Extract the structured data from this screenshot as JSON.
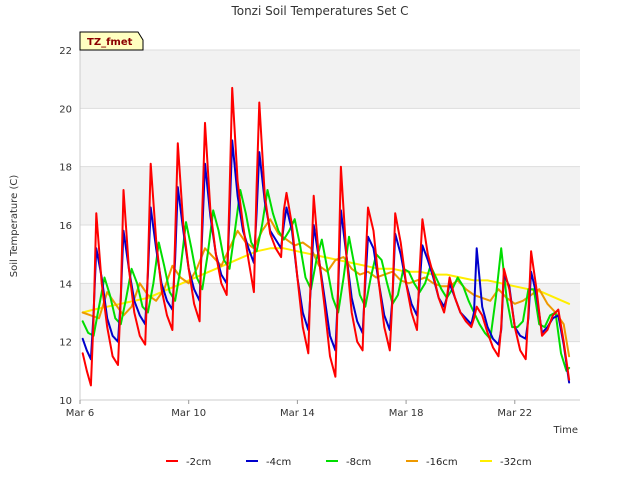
{
  "chart_data": {
    "type": "line",
    "title": "Tonzi Soil Temperatures Set C",
    "xlabel": "Time",
    "ylabel": "Soil Temperature (C)",
    "badge": "TZ_fmet",
    "ylim": [
      10,
      22
    ],
    "xlim": [
      6.0,
      24.4
    ],
    "yticks": [
      10,
      12,
      14,
      16,
      18,
      20,
      22
    ],
    "xticks": [
      {
        "day": 6,
        "label": "Mar 6"
      },
      {
        "day": 10,
        "label": "Mar 10"
      },
      {
        "day": 14,
        "label": "Mar 14"
      },
      {
        "day": 18,
        "label": "Mar 18"
      },
      {
        "day": 22,
        "label": "Mar 22"
      }
    ],
    "grid": true,
    "legend_position": "bottom",
    "x_unit": "day of March",
    "series": [
      {
        "name": "-2cm",
        "color": "#ff0000",
        "x": [
          6.1,
          6.25,
          6.4,
          6.5,
          6.6,
          6.8,
          7.0,
          7.2,
          7.4,
          7.5,
          7.6,
          7.8,
          8.0,
          8.2,
          8.4,
          8.5,
          8.6,
          8.8,
          9.0,
          9.2,
          9.4,
          9.5,
          9.6,
          9.8,
          10.0,
          10.2,
          10.4,
          10.5,
          10.6,
          10.8,
          11.0,
          11.2,
          11.4,
          11.5,
          11.6,
          11.8,
          12.0,
          12.2,
          12.4,
          12.5,
          12.6,
          12.8,
          13.0,
          13.2,
          13.4,
          13.5,
          13.6,
          13.8,
          14.0,
          14.2,
          14.4,
          14.5,
          14.6,
          14.8,
          15.0,
          15.2,
          15.4,
          15.5,
          15.6,
          15.8,
          16.0,
          16.2,
          16.4,
          16.5,
          16.6,
          16.8,
          17.0,
          17.2,
          17.4,
          17.5,
          17.6,
          17.8,
          18.0,
          18.2,
          18.4,
          18.5,
          18.6,
          18.8,
          19.0,
          19.2,
          19.4,
          19.5,
          19.6,
          19.8,
          20.0,
          20.2,
          20.4,
          20.5,
          20.6,
          20.8,
          21.0,
          21.2,
          21.4,
          21.5,
          21.6,
          21.8,
          22.0,
          22.2,
          22.4,
          22.5,
          22.6,
          22.8,
          23.0,
          23.2,
          23.4,
          23.6,
          23.8,
          24.0
        ],
        "y": [
          11.6,
          11.0,
          10.5,
          12.8,
          16.4,
          14.0,
          12.5,
          11.5,
          11.2,
          13.5,
          17.2,
          14.5,
          13.0,
          12.2,
          11.9,
          14.5,
          18.1,
          15.5,
          13.8,
          12.9,
          12.4,
          15.5,
          18.8,
          16.0,
          14.5,
          13.3,
          12.7,
          16.5,
          19.5,
          16.5,
          15.0,
          14.0,
          13.6,
          17.0,
          20.7,
          17.5,
          16.0,
          14.8,
          13.7,
          17.3,
          20.2,
          17.0,
          15.7,
          15.2,
          14.9,
          16.5,
          17.1,
          16.0,
          14.2,
          12.5,
          11.6,
          14.5,
          17.0,
          14.8,
          13.2,
          11.5,
          10.8,
          14.0,
          18.0,
          15.0,
          13.0,
          12.0,
          11.7,
          14.5,
          16.6,
          15.8,
          14.0,
          12.5,
          11.7,
          13.5,
          16.4,
          15.4,
          14.0,
          13.0,
          12.4,
          14.5,
          16.2,
          15.0,
          14.3,
          13.5,
          13.0,
          13.5,
          14.2,
          13.5,
          13.0,
          12.7,
          12.5,
          12.8,
          13.2,
          12.9,
          12.3,
          11.8,
          11.5,
          12.5,
          14.5,
          13.8,
          12.5,
          11.7,
          11.4,
          13.0,
          15.1,
          13.8,
          12.2,
          12.4,
          12.9,
          13.1,
          12.0,
          10.7
        ]
      },
      {
        "name": "-4cm",
        "color": "#0000cc",
        "x": [
          6.1,
          6.25,
          6.4,
          6.5,
          6.6,
          6.8,
          7.0,
          7.2,
          7.4,
          7.5,
          7.6,
          7.8,
          8.0,
          8.2,
          8.4,
          8.5,
          8.6,
          8.8,
          9.0,
          9.2,
          9.4,
          9.5,
          9.6,
          9.8,
          10.0,
          10.2,
          10.4,
          10.5,
          10.6,
          10.8,
          11.0,
          11.2,
          11.4,
          11.5,
          11.6,
          11.8,
          12.0,
          12.2,
          12.4,
          12.5,
          12.6,
          12.8,
          13.0,
          13.2,
          13.4,
          13.5,
          13.6,
          13.8,
          14.0,
          14.2,
          14.4,
          14.5,
          14.6,
          14.8,
          15.0,
          15.2,
          15.4,
          15.5,
          15.6,
          15.8,
          16.0,
          16.2,
          16.4,
          16.5,
          16.6,
          16.8,
          17.0,
          17.2,
          17.4,
          17.5,
          17.6,
          17.8,
          18.0,
          18.2,
          18.4,
          18.5,
          18.6,
          18.8,
          19.0,
          19.2,
          19.4,
          19.5,
          19.6,
          19.8,
          20.0,
          20.2,
          20.4,
          20.5,
          20.6,
          20.8,
          21.0,
          21.2,
          21.4,
          21.5,
          21.6,
          21.8,
          22.0,
          22.2,
          22.4,
          22.5,
          22.6,
          22.8,
          23.0,
          23.2,
          23.4,
          23.6,
          23.8,
          24.0
        ],
        "y": [
          12.1,
          11.7,
          11.4,
          13.0,
          15.2,
          14.2,
          12.8,
          12.2,
          12.0,
          13.5,
          15.8,
          14.5,
          13.4,
          12.9,
          12.6,
          14.3,
          16.6,
          15.2,
          14.0,
          13.4,
          13.1,
          14.8,
          17.3,
          15.8,
          14.5,
          13.8,
          13.4,
          15.8,
          18.1,
          16.3,
          15.0,
          14.3,
          14.0,
          16.3,
          18.9,
          17.0,
          15.8,
          15.2,
          14.7,
          16.4,
          18.5,
          16.8,
          15.8,
          15.5,
          15.2,
          16.0,
          16.6,
          15.8,
          14.2,
          13.0,
          12.4,
          14.0,
          16.0,
          14.8,
          13.5,
          12.2,
          11.7,
          13.8,
          16.5,
          15.0,
          13.5,
          12.7,
          12.3,
          14.0,
          15.6,
          15.2,
          14.0,
          12.9,
          12.4,
          13.5,
          15.7,
          15.0,
          14.0,
          13.3,
          12.9,
          14.0,
          15.3,
          14.8,
          14.2,
          13.5,
          13.2,
          13.5,
          14.0,
          13.5,
          13.0,
          12.8,
          12.6,
          13.0,
          15.2,
          13.2,
          12.5,
          12.1,
          11.9,
          12.4,
          14.3,
          13.9,
          12.5,
          12.2,
          12.1,
          12.8,
          14.4,
          13.6,
          12.3,
          12.5,
          12.8,
          12.9,
          11.9,
          10.6
        ]
      },
      {
        "name": "-8cm",
        "color": "#00dd00",
        "x": [
          6.1,
          6.3,
          6.5,
          6.7,
          6.9,
          7.1,
          7.3,
          7.5,
          7.7,
          7.9,
          8.1,
          8.3,
          8.5,
          8.7,
          8.9,
          9.1,
          9.3,
          9.5,
          9.7,
          9.9,
          10.1,
          10.3,
          10.5,
          10.7,
          10.9,
          11.1,
          11.3,
          11.5,
          11.7,
          11.9,
          12.1,
          12.3,
          12.5,
          12.7,
          12.9,
          13.1,
          13.3,
          13.5,
          13.7,
          13.9,
          14.1,
          14.3,
          14.5,
          14.7,
          14.9,
          15.1,
          15.3,
          15.5,
          15.7,
          15.9,
          16.1,
          16.3,
          16.5,
          16.7,
          16.9,
          17.1,
          17.3,
          17.5,
          17.7,
          17.9,
          18.1,
          18.3,
          18.5,
          18.7,
          18.9,
          19.1,
          19.3,
          19.5,
          19.7,
          19.9,
          20.1,
          20.3,
          20.5,
          20.7,
          20.9,
          21.1,
          21.3,
          21.5,
          21.7,
          21.9,
          22.1,
          22.3,
          22.5,
          22.7,
          22.9,
          23.1,
          23.3,
          23.5,
          23.7,
          23.9,
          24.0
        ],
        "y": [
          12.7,
          12.3,
          12.2,
          13.2,
          14.2,
          13.6,
          12.8,
          12.6,
          13.5,
          14.5,
          14.0,
          13.2,
          13.0,
          14.0,
          15.4,
          14.6,
          13.7,
          13.4,
          14.5,
          16.1,
          15.2,
          14.2,
          13.8,
          15.0,
          16.5,
          15.8,
          14.8,
          14.5,
          15.8,
          17.2,
          16.4,
          15.4,
          15.1,
          16.0,
          17.2,
          16.4,
          15.8,
          15.5,
          15.8,
          16.2,
          15.3,
          14.2,
          13.8,
          14.8,
          15.5,
          14.5,
          13.5,
          13.0,
          14.2,
          15.6,
          14.6,
          13.6,
          13.2,
          14.2,
          15.0,
          14.8,
          14.0,
          13.3,
          13.6,
          14.5,
          14.4,
          14.0,
          13.7,
          14.0,
          14.6,
          14.2,
          13.8,
          13.5,
          13.8,
          14.2,
          13.9,
          13.4,
          13.0,
          12.6,
          12.3,
          12.1,
          13.5,
          15.2,
          13.5,
          12.5,
          12.5,
          12.7,
          13.8,
          13.8,
          12.6,
          12.5,
          12.9,
          13.0,
          11.6,
          11.0,
          11.1
        ]
      },
      {
        "name": "-16cm",
        "color": "#ee9900",
        "x": [
          6.1,
          6.4,
          6.7,
          7.0,
          7.3,
          7.6,
          7.9,
          8.2,
          8.5,
          8.8,
          9.1,
          9.4,
          9.7,
          10.0,
          10.3,
          10.6,
          10.9,
          11.2,
          11.5,
          11.8,
          12.1,
          12.4,
          12.7,
          13.0,
          13.3,
          13.6,
          13.9,
          14.2,
          14.5,
          14.8,
          15.1,
          15.4,
          15.7,
          16.0,
          16.3,
          16.6,
          16.9,
          17.2,
          17.5,
          17.8,
          18.1,
          18.4,
          18.7,
          19.0,
          19.3,
          19.6,
          19.9,
          20.2,
          20.5,
          20.8,
          21.1,
          21.4,
          21.7,
          22.0,
          22.3,
          22.6,
          22.9,
          23.2,
          23.5,
          23.8,
          24.0
        ],
        "y": [
          13.0,
          12.9,
          12.8,
          13.7,
          13.3,
          12.9,
          13.2,
          14.0,
          13.6,
          13.4,
          13.8,
          14.6,
          14.2,
          14.0,
          14.5,
          15.2,
          14.9,
          14.6,
          15.2,
          15.8,
          15.4,
          15.2,
          15.8,
          16.2,
          15.7,
          15.5,
          15.3,
          15.4,
          15.2,
          14.6,
          14.4,
          14.8,
          14.9,
          14.5,
          14.3,
          14.4,
          14.2,
          14.3,
          14.4,
          14.1,
          14.0,
          14.1,
          14.2,
          14.0,
          13.9,
          13.9,
          14.1,
          13.8,
          13.6,
          13.5,
          13.4,
          13.8,
          13.5,
          13.3,
          13.4,
          13.6,
          13.8,
          13.3,
          13.0,
          12.6,
          11.5
        ]
      },
      {
        "name": "-32cm",
        "color": "#ffee00",
        "x": [
          6.1,
          6.5,
          7.0,
          7.5,
          8.0,
          8.5,
          9.0,
          9.5,
          10.0,
          10.5,
          11.0,
          11.5,
          12.0,
          12.5,
          13.0,
          13.5,
          14.0,
          14.5,
          15.0,
          15.5,
          16.0,
          16.5,
          17.0,
          17.5,
          18.0,
          18.5,
          19.0,
          19.5,
          20.0,
          20.5,
          21.0,
          21.5,
          22.0,
          22.5,
          23.0,
          23.5,
          24.0
        ],
        "y": [
          13.0,
          13.1,
          13.2,
          13.3,
          13.4,
          13.5,
          13.7,
          13.9,
          14.1,
          14.3,
          14.5,
          14.7,
          14.9,
          15.1,
          15.2,
          15.2,
          15.1,
          15.0,
          14.9,
          14.8,
          14.7,
          14.6,
          14.5,
          14.5,
          14.4,
          14.4,
          14.3,
          14.3,
          14.2,
          14.1,
          14.1,
          14.0,
          13.9,
          13.8,
          13.7,
          13.5,
          13.3
        ]
      }
    ]
  }
}
